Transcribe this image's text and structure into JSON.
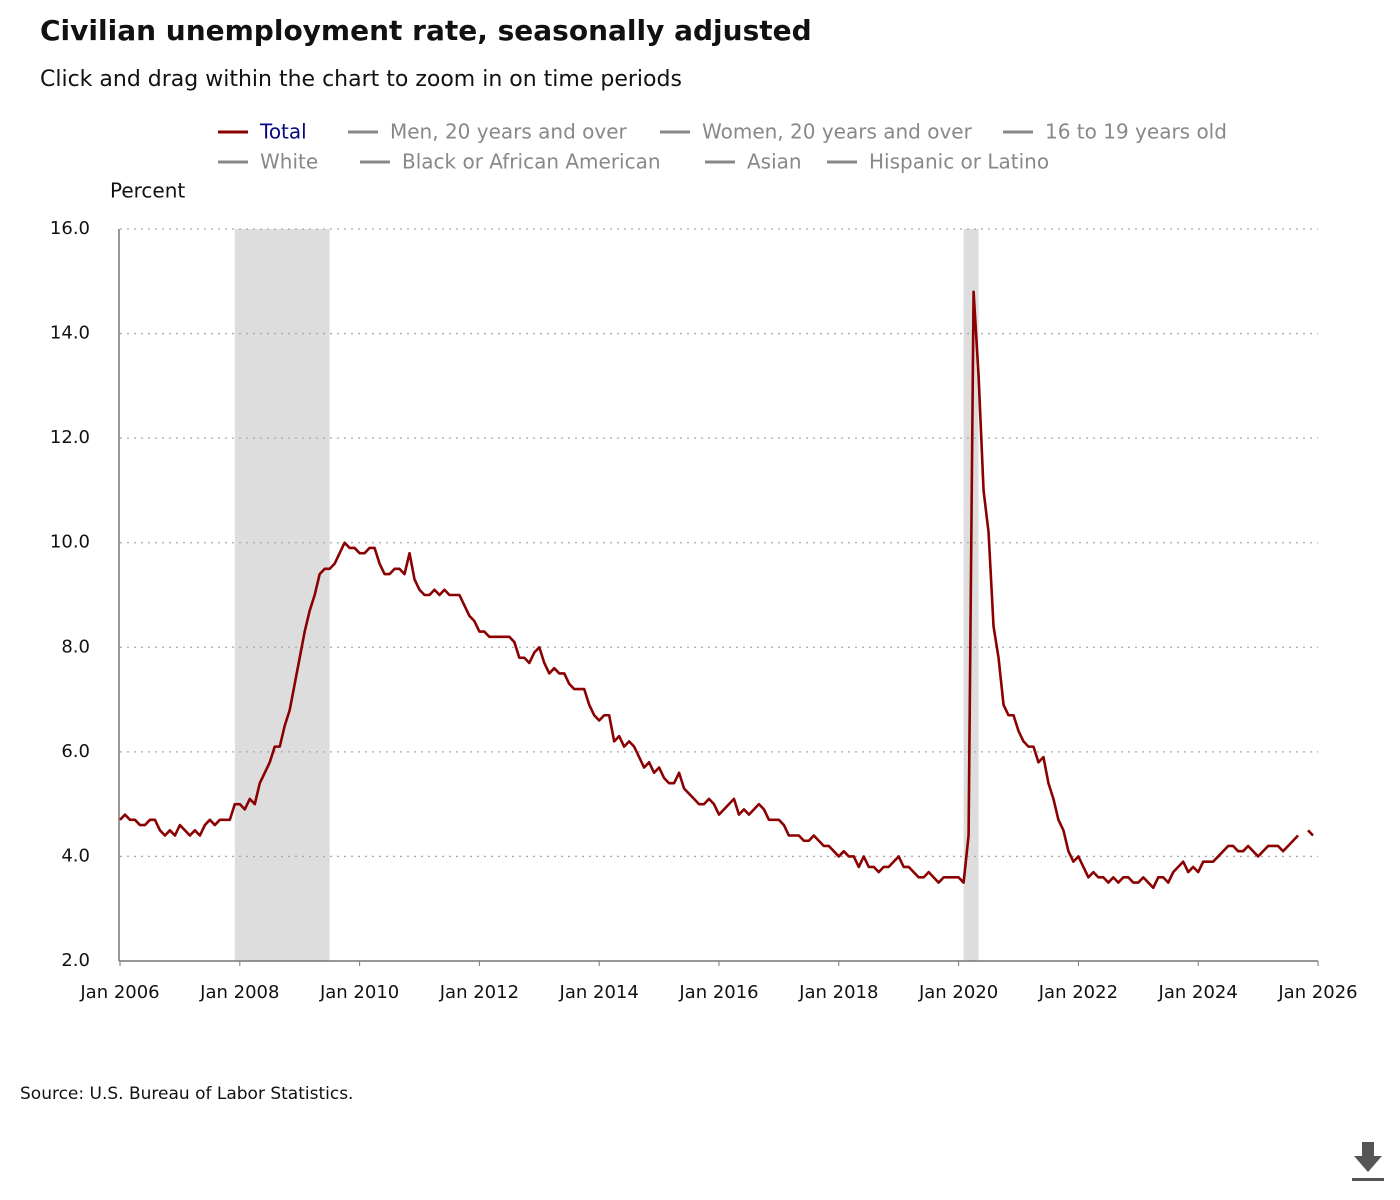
{
  "chart_data": {
    "type": "line",
    "title": "Civilian unemployment rate, seasonally adjusted",
    "subtitle": "Click and drag within the chart to zoom in on time periods",
    "y_label": "Percent",
    "source": "Source: U.S. Bureau of Labor Statistics.",
    "grid": true,
    "ylim": [
      2,
      16
    ],
    "yticks": [
      {
        "value": 2,
        "label": "2.0"
      },
      {
        "value": 4,
        "label": "4.0"
      },
      {
        "value": 6,
        "label": "6.0"
      },
      {
        "value": 8,
        "label": "8.0"
      },
      {
        "value": 10,
        "label": "10.0"
      },
      {
        "value": 12,
        "label": "12.0"
      },
      {
        "value": 14,
        "label": "14.0"
      },
      {
        "value": 16,
        "label": "16.0"
      }
    ],
    "xlim": [
      "2006-01",
      "2026-01"
    ],
    "xticks": [
      {
        "value": "2006-01",
        "label": "Jan 2006"
      },
      {
        "value": "2008-01",
        "label": "Jan 2008"
      },
      {
        "value": "2010-01",
        "label": "Jan 2010"
      },
      {
        "value": "2012-01",
        "label": "Jan 2012"
      },
      {
        "value": "2014-01",
        "label": "Jan 2014"
      },
      {
        "value": "2016-01",
        "label": "Jan 2016"
      },
      {
        "value": "2018-01",
        "label": "Jan 2018"
      },
      {
        "value": "2020-01",
        "label": "Jan 2020"
      },
      {
        "value": "2022-01",
        "label": "Jan 2022"
      },
      {
        "value": "2024-01",
        "label": "Jan 2024"
      },
      {
        "value": "2026-01",
        "label": "Jan 2026"
      }
    ],
    "recessions": [
      {
        "start": "2007-12",
        "end": "2009-06"
      },
      {
        "start": "2020-02",
        "end": "2020-04"
      }
    ],
    "recession_color": "#dddddd",
    "x": [
      "2006-01",
      "2006-02",
      "2006-03",
      "2006-04",
      "2006-05",
      "2006-06",
      "2006-07",
      "2006-08",
      "2006-09",
      "2006-10",
      "2006-11",
      "2006-12",
      "2007-01",
      "2007-02",
      "2007-03",
      "2007-04",
      "2007-05",
      "2007-06",
      "2007-07",
      "2007-08",
      "2007-09",
      "2007-10",
      "2007-11",
      "2007-12",
      "2008-01",
      "2008-02",
      "2008-03",
      "2008-04",
      "2008-05",
      "2008-06",
      "2008-07",
      "2008-08",
      "2008-09",
      "2008-10",
      "2008-11",
      "2008-12",
      "2009-01",
      "2009-02",
      "2009-03",
      "2009-04",
      "2009-05",
      "2009-06",
      "2009-07",
      "2009-08",
      "2009-09",
      "2009-10",
      "2009-11",
      "2009-12",
      "2010-01",
      "2010-02",
      "2010-03",
      "2010-04",
      "2010-05",
      "2010-06",
      "2010-07",
      "2010-08",
      "2010-09",
      "2010-10",
      "2010-11",
      "2010-12",
      "2011-01",
      "2011-02",
      "2011-03",
      "2011-04",
      "2011-05",
      "2011-06",
      "2011-07",
      "2011-08",
      "2011-09",
      "2011-10",
      "2011-11",
      "2011-12",
      "2012-01",
      "2012-02",
      "2012-03",
      "2012-04",
      "2012-05",
      "2012-06",
      "2012-07",
      "2012-08",
      "2012-09",
      "2012-10",
      "2012-11",
      "2012-12",
      "2013-01",
      "2013-02",
      "2013-03",
      "2013-04",
      "2013-05",
      "2013-06",
      "2013-07",
      "2013-08",
      "2013-09",
      "2013-10",
      "2013-11",
      "2013-12",
      "2014-01",
      "2014-02",
      "2014-03",
      "2014-04",
      "2014-05",
      "2014-06",
      "2014-07",
      "2014-08",
      "2014-09",
      "2014-10",
      "2014-11",
      "2014-12",
      "2015-01",
      "2015-02",
      "2015-03",
      "2015-04",
      "2015-05",
      "2015-06",
      "2015-07",
      "2015-08",
      "2015-09",
      "2015-10",
      "2015-11",
      "2015-12",
      "2016-01",
      "2016-02",
      "2016-03",
      "2016-04",
      "2016-05",
      "2016-06",
      "2016-07",
      "2016-08",
      "2016-09",
      "2016-10",
      "2016-11",
      "2016-12",
      "2017-01",
      "2017-02",
      "2017-03",
      "2017-04",
      "2017-05",
      "2017-06",
      "2017-07",
      "2017-08",
      "2017-09",
      "2017-10",
      "2017-11",
      "2017-12",
      "2018-01",
      "2018-02",
      "2018-03",
      "2018-04",
      "2018-05",
      "2018-06",
      "2018-07",
      "2018-08",
      "2018-09",
      "2018-10",
      "2018-11",
      "2018-12",
      "2019-01",
      "2019-02",
      "2019-03",
      "2019-04",
      "2019-05",
      "2019-06",
      "2019-07",
      "2019-08",
      "2019-09",
      "2019-10",
      "2019-11",
      "2019-12",
      "2020-01",
      "2020-02",
      "2020-03",
      "2020-04",
      "2020-05",
      "2020-06",
      "2020-07",
      "2020-08",
      "2020-09",
      "2020-10",
      "2020-11",
      "2020-12",
      "2021-01",
      "2021-02",
      "2021-03",
      "2021-04",
      "2021-05",
      "2021-06",
      "2021-07",
      "2021-08",
      "2021-09",
      "2021-10",
      "2021-11",
      "2021-12",
      "2022-01",
      "2022-02",
      "2022-03",
      "2022-04",
      "2022-05",
      "2022-06",
      "2022-07",
      "2022-08",
      "2022-09",
      "2022-10",
      "2022-11",
      "2022-12",
      "2023-01",
      "2023-02",
      "2023-03",
      "2023-04",
      "2023-05",
      "2023-06",
      "2023-07",
      "2023-08",
      "2023-09",
      "2023-10",
      "2023-11",
      "2023-12",
      "2024-01",
      "2024-02",
      "2024-03",
      "2024-04",
      "2024-05",
      "2024-06",
      "2024-07",
      "2024-08",
      "2024-09",
      "2024-10",
      "2024-11",
      "2024-12",
      "2025-01",
      "2025-02",
      "2025-03",
      "2025-04",
      "2025-05",
      "2025-06",
      "2025-07",
      "2025-08",
      "2025-09",
      "2025-10",
      "2025-11",
      "2025-12"
    ],
    "series": [
      {
        "name": "Total",
        "color": "#8b0000",
        "visible": true,
        "values": [
          4.7,
          4.8,
          4.7,
          4.7,
          4.6,
          4.6,
          4.7,
          4.7,
          4.5,
          4.4,
          4.5,
          4.4,
          4.6,
          4.5,
          4.4,
          4.5,
          4.4,
          4.6,
          4.7,
          4.6,
          4.7,
          4.7,
          4.7,
          5.0,
          5.0,
          4.9,
          5.1,
          5.0,
          5.4,
          5.6,
          5.8,
          6.1,
          6.1,
          6.5,
          6.8,
          7.3,
          7.8,
          8.3,
          8.7,
          9.0,
          9.4,
          9.5,
          9.5,
          9.6,
          9.8,
          10.0,
          9.9,
          9.9,
          9.8,
          9.8,
          9.9,
          9.9,
          9.6,
          9.4,
          9.4,
          9.5,
          9.5,
          9.4,
          9.8,
          9.3,
          9.1,
          9.0,
          9.0,
          9.1,
          9.0,
          9.1,
          9.0,
          9.0,
          9.0,
          8.8,
          8.6,
          8.5,
          8.3,
          8.3,
          8.2,
          8.2,
          8.2,
          8.2,
          8.2,
          8.1,
          7.8,
          7.8,
          7.7,
          7.9,
          8.0,
          7.7,
          7.5,
          7.6,
          7.5,
          7.5,
          7.3,
          7.2,
          7.2,
          7.2,
          6.9,
          6.7,
          6.6,
          6.7,
          6.7,
          6.2,
          6.3,
          6.1,
          6.2,
          6.1,
          5.9,
          5.7,
          5.8,
          5.6,
          5.7,
          5.5,
          5.4,
          5.4,
          5.6,
          5.3,
          5.2,
          5.1,
          5.0,
          5.0,
          5.1,
          5.0,
          4.8,
          4.9,
          5.0,
          5.1,
          4.8,
          4.9,
          4.8,
          4.9,
          5.0,
          4.9,
          4.7,
          4.7,
          4.7,
          4.6,
          4.4,
          4.4,
          4.4,
          4.3,
          4.3,
          4.4,
          4.3,
          4.2,
          4.2,
          4.1,
          4.0,
          4.1,
          4.0,
          4.0,
          3.8,
          4.0,
          3.8,
          3.8,
          3.7,
          3.8,
          3.8,
          3.9,
          4.0,
          3.8,
          3.8,
          3.7,
          3.6,
          3.6,
          3.7,
          3.6,
          3.5,
          3.6,
          3.6,
          3.6,
          3.6,
          3.5,
          4.4,
          14.8,
          13.2,
          11.0,
          10.2,
          8.4,
          7.8,
          6.9,
          6.7,
          6.7,
          6.4,
          6.2,
          6.1,
          6.1,
          5.8,
          5.9,
          5.4,
          5.1,
          4.7,
          4.5,
          4.1,
          3.9,
          4.0,
          3.8,
          3.6,
          3.7,
          3.6,
          3.6,
          3.5,
          3.6,
          3.5,
          3.6,
          3.6,
          3.5,
          3.5,
          3.6,
          3.5,
          3.4,
          3.6,
          3.6,
          3.5,
          3.7,
          3.8,
          3.9,
          3.7,
          3.8,
          3.7,
          3.9,
          3.9,
          3.9,
          4.0,
          4.1,
          4.2,
          4.2,
          4.1,
          4.1,
          4.2,
          4.1,
          4.0,
          4.1,
          4.2,
          4.2,
          4.2,
          4.1,
          4.2,
          4.3,
          4.4,
          null,
          4.5,
          4.4
        ]
      },
      {
        "name": "Men, 20 years and over",
        "color": "#888888",
        "visible": false
      },
      {
        "name": "Women, 20 years and over",
        "color": "#888888",
        "visible": false
      },
      {
        "name": "16 to 19 years old",
        "color": "#888888",
        "visible": false
      },
      {
        "name": "White",
        "color": "#888888",
        "visible": false
      },
      {
        "name": "Black or African American",
        "color": "#888888",
        "visible": false
      },
      {
        "name": "Asian",
        "color": "#888888",
        "visible": false
      },
      {
        "name": "Hispanic or Latino",
        "color": "#888888",
        "visible": false
      }
    ]
  }
}
